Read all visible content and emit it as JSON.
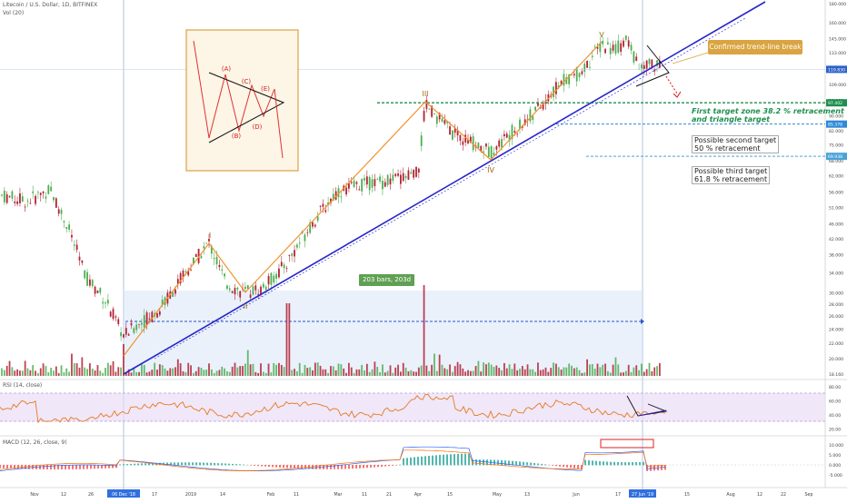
{
  "header": {
    "symbol": "Litecoin / U.S. Dollar, 1D, BITFINEX",
    "volume_label": "Vol (20)"
  },
  "price_axis": {
    "ticks": [
      "180.000",
      "160.000",
      "145.000",
      "133.000",
      "120.000",
      "109.000",
      "99.000",
      "90.000",
      "82.000",
      "75.000",
      "68.000",
      "62.000",
      "56.000",
      "51.000",
      "46.000",
      "42.000",
      "38.000",
      "34.000",
      "30.000",
      "28.000",
      "26.000",
      "24.000",
      "22.000",
      "20.000",
      "18.160"
    ],
    "current_price": "119.830",
    "level_1": "97.402",
    "level_2": "85.378",
    "level_3": "69.938"
  },
  "time_axis": {
    "ticks": [
      "Nov",
      "12",
      "26",
      "Dec '18",
      "17",
      "2019",
      "14",
      "Feb",
      "11",
      "Mar",
      "11",
      "21",
      "Apr",
      "15",
      "May",
      "13",
      "Jun",
      "17",
      "27 Jun '19",
      "15",
      "Aug",
      "12",
      "22",
      "Sep"
    ],
    "highlight_left": "06 Dec '18",
    "highlight_right": "27 Jun '19"
  },
  "range_label": "203 bars, 203d",
  "wave_labels": {
    "w1": "I",
    "w2": "II",
    "w3": "III",
    "w4": "IV",
    "w5": "V"
  },
  "inset": {
    "labels": [
      "(A)",
      "(B)",
      "(C)",
      "(D)",
      "(E)"
    ]
  },
  "annotations": {
    "trend_break": "Confirmed trend-line break",
    "target1_line1": "First target zone 38.2 % retracement",
    "target1_line2": "and triangle target",
    "target2_line1": "Possible second target",
    "target2_line2": "50 % retracement",
    "target3_line1": "Possible third target",
    "target3_line2": "61.8 % retracement"
  },
  "rsi": {
    "label": "RSI (14, close)",
    "ticks": [
      "80.00",
      "60.00",
      "40.00",
      "20.00"
    ]
  },
  "macd": {
    "label": "MACD (12, 26, close, 9)",
    "ticks": [
      "10.000",
      "5.000",
      "0.000",
      "-5.000"
    ]
  },
  "colors": {
    "up": "#4caf50",
    "down": "#b22234",
    "wave": "#f0922e",
    "trend": "#2727c8",
    "target": "#1e8f4e",
    "highlight_axis": "#2f6fe0"
  },
  "chart_data": {
    "type": "candlestick",
    "title": "Litecoin / U.S. Dollar, 1D, BITFINEX",
    "ylim": [
      18.16,
      180
    ],
    "y_scale": "log",
    "swing_points": [
      {
        "label": "I",
        "price": 42
      },
      {
        "label": "II",
        "price": 30
      },
      {
        "label": "III",
        "price": 97.402
      },
      {
        "label": "IV",
        "price": 70
      },
      {
        "label": "V",
        "price": 145
      }
    ],
    "retracement_targets": [
      {
        "label": "First target zone 38.2 % retracement and triangle target",
        "price": 97.402
      },
      {
        "label": "Possible second target 50 % retracement",
        "price": 85.378
      },
      {
        "label": "Possible third target 61.8 % retracement",
        "price": 69.938
      }
    ],
    "current_price": 119.83,
    "measured_range": "203 bars, 203d",
    "indicators": [
      "Vol (20)",
      "RSI (14, close)",
      "MACD (12, 26, close, 9)"
    ]
  }
}
